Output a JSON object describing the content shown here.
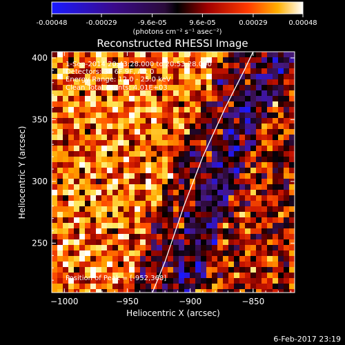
{
  "chart_data": {
    "type": "heatmap",
    "title": "Reconstructed RHESSI Image",
    "xlabel": "Heliocentric X (arcsec)",
    "ylabel": "Heliocentric Y (arcsec)",
    "xlim": [
      -1010,
      -817
    ],
    "ylim": [
      210,
      405
    ],
    "x_ticks": [
      -1000,
      -950,
      -900,
      -850
    ],
    "x_tick_labels": [
      "−1000",
      "−950",
      "−900",
      "−850"
    ],
    "y_ticks": [
      250,
      300,
      350,
      400
    ],
    "y_tick_labels": [
      "250",
      "300",
      "350",
      "400"
    ],
    "colorbar": {
      "range": [
        -0.00048,
        0.00048
      ],
      "ticks": [
        -0.00048,
        -0.00029,
        -9.6e-05,
        9.6e-05,
        0.00029,
        0.00048
      ],
      "tick_labels": [
        "-0.00048",
        "-0.00029",
        "-9.6e-05",
        "9.6e-05",
        "0.00029",
        "0.00048"
      ],
      "units_label": "(photons cm⁻² s⁻¹ asec⁻²)",
      "colormap": "blue-purple-red-yellow-white"
    },
    "annotations": [
      "1-Sep-2014 20:43:28.000 to 20:53:28.000",
      "Detectors: 3F 6F 9F, Att 0",
      "Energy Range: 12.0 - 25.0 keV",
      "Clean     Total counts: 4.01E+03",
      "Position of Peak = [-952,368]"
    ],
    "limb": [
      [
        -930,
        210
      ],
      [
        -920,
        235
      ],
      [
        -905,
        280
      ],
      [
        -890,
        320
      ],
      [
        -872,
        360
      ],
      [
        -857,
        390
      ],
      [
        -850,
        405
      ]
    ],
    "peak": [
      -952,
      368
    ],
    "footer_date": "6-Feb-2017 23:19"
  }
}
